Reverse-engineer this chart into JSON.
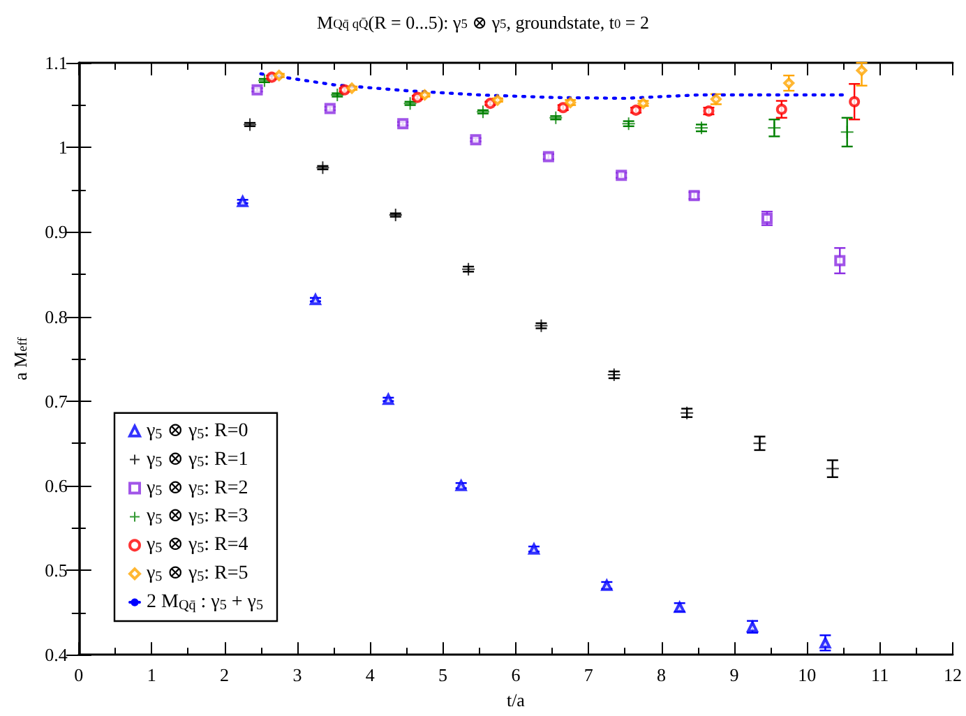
{
  "chart_data": {
    "type": "scatter",
    "title": "M$_{Qq̄ qQ̄}$(R = 0...5): γ$_{5}$ ⊗ γ$_{5}$, groundstate, t$_{0}$ = 2",
    "xlabel": "t/a",
    "ylabel": "a M$_{eff}$",
    "xlim": [
      0,
      12
    ],
    "xticks": [
      0,
      1,
      2,
      3,
      4,
      5,
      6,
      7,
      8,
      9,
      10,
      11,
      12
    ],
    "ylim": [
      0.4,
      1.1
    ],
    "yticks": [
      0.4,
      0.5,
      0.6,
      0.7,
      0.8,
      0.9,
      1,
      1.1
    ],
    "grid": false,
    "legend": "bottom left",
    "series": [
      {
        "name": "γ$_{5}$ ⊗ γ$_{5}$: R=0",
        "marker": "triangle",
        "color": "#0000ff",
        "x": [
          2.25,
          3.25,
          4.25,
          5.25,
          6.25,
          7.25,
          8.25,
          9.25,
          10.25
        ],
        "values": [
          0.936,
          0.82,
          0.702,
          0.6,
          0.525,
          0.482,
          0.456,
          0.433,
          0.414
        ],
        "errors": [
          0.002,
          0.002,
          0.002,
          0.003,
          0.003,
          0.004,
          0.005,
          0.007,
          0.009
        ]
      },
      {
        "name": "γ$_{5}$ ⊗ γ$_{5}$: R=1",
        "marker": "cross",
        "color": "#000000",
        "x": [
          2.35,
          3.35,
          4.35,
          5.35,
          6.35,
          7.35,
          8.35,
          9.35,
          10.35
        ],
        "values": [
          1.027,
          0.976,
          0.92,
          0.856,
          0.789,
          0.731,
          0.686,
          0.65,
          0.62
        ],
        "errors": [
          0.002,
          0.002,
          0.002,
          0.003,
          0.003,
          0.004,
          0.005,
          0.008,
          0.01
        ]
      },
      {
        "name": "γ$_{5}$ ⊗ γ$_{5}$: R=2",
        "marker": "square",
        "color": "#8a2be2",
        "x": [
          2.45,
          3.45,
          4.45,
          5.45,
          6.45,
          7.45,
          8.45,
          9.45,
          10.45
        ],
        "values": [
          1.068,
          1.046,
          1.028,
          1.009,
          0.989,
          0.967,
          0.943,
          0.916,
          0.866
        ],
        "errors": [
          0.002,
          0.002,
          0.002,
          0.002,
          0.003,
          0.003,
          0.004,
          0.008,
          0.015
        ]
      },
      {
        "name": "γ$_{5}$ ⊗ γ$_{5}$: R=3",
        "marker": "cross",
        "color": "#008000",
        "x": [
          2.55,
          3.55,
          4.55,
          5.55,
          6.55,
          7.55,
          8.55,
          9.55,
          10.55
        ],
        "values": [
          1.079,
          1.062,
          1.052,
          1.042,
          1.035,
          1.028,
          1.023,
          1.023,
          1.018
        ],
        "errors": [
          0.002,
          0.002,
          0.002,
          0.002,
          0.002,
          0.003,
          0.004,
          0.01,
          0.017
        ]
      },
      {
        "name": "γ$_{5}$ ⊗ γ$_{5}$: R=4",
        "marker": "circle",
        "color": "#ff0000",
        "x": [
          2.65,
          3.65,
          4.65,
          5.65,
          6.65,
          7.65,
          8.65,
          9.65,
          10.65
        ],
        "values": [
          1.083,
          1.068,
          1.059,
          1.052,
          1.047,
          1.044,
          1.043,
          1.045,
          1.054
        ],
        "errors": [
          0.002,
          0.002,
          0.002,
          0.002,
          0.003,
          0.003,
          0.004,
          0.01,
          0.021
        ]
      },
      {
        "name": "γ$_{5}$ ⊗ γ$_{5}$: R=5",
        "marker": "diamond",
        "color": "#ffa500",
        "x": [
          2.75,
          3.75,
          4.75,
          5.75,
          6.75,
          7.75,
          8.75,
          9.75,
          10.75
        ],
        "values": [
          1.085,
          1.07,
          1.062,
          1.056,
          1.053,
          1.052,
          1.057,
          1.076,
          1.091
        ],
        "errors": [
          0.002,
          0.002,
          0.002,
          0.002,
          0.003,
          0.003,
          0.006,
          0.009,
          [
            1.073,
            1.1
          ]
        ]
      },
      {
        "name": "2 M$_{Qq̄}$ : γ$_{5}$ + γ$_{5}$",
        "type": "line",
        "marker": "none",
        "line_style": "dotted",
        "color": "#0000ff",
        "x": [
          2.5,
          3.5,
          4.5,
          5.5,
          6.5,
          7.5,
          8.5,
          9.5,
          10.5
        ],
        "values": [
          1.087,
          1.074,
          1.067,
          1.062,
          1.059,
          1.058,
          1.062,
          1.062,
          1.062
        ]
      }
    ]
  }
}
